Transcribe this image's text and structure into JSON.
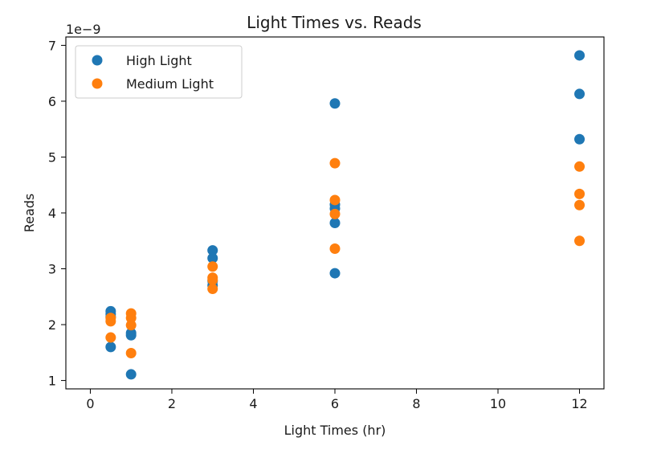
{
  "chart_data": {
    "type": "scatter",
    "title": "Light Times vs. Reads",
    "xlabel": "Light Times (hr)",
    "ylabel": "Reads",
    "offset_text": "1e−9",
    "xlim": [
      -0.6,
      12.6
    ],
    "ylim": [
      0.85,
      7.15
    ],
    "xticks": [
      0,
      2,
      4,
      6,
      8,
      10,
      12
    ],
    "yticks": [
      1,
      2,
      3,
      4,
      5,
      6,
      7
    ],
    "grid": false,
    "legend_position": "top-left",
    "series": [
      {
        "name": "High Light",
        "color": "#1f77b4",
        "points": [
          {
            "x": 0.5,
            "y": 2.24
          },
          {
            "x": 0.5,
            "y": 2.19
          },
          {
            "x": 0.5,
            "y": 2.14
          },
          {
            "x": 0.5,
            "y": 1.6
          },
          {
            "x": 1,
            "y": 1.85
          },
          {
            "x": 1,
            "y": 1.81
          },
          {
            "x": 1,
            "y": 1.11
          },
          {
            "x": 3,
            "y": 3.33
          },
          {
            "x": 3,
            "y": 3.19
          },
          {
            "x": 3,
            "y": 2.78
          },
          {
            "x": 3,
            "y": 2.7
          },
          {
            "x": 6,
            "y": 5.96
          },
          {
            "x": 6,
            "y": 4.15
          },
          {
            "x": 6,
            "y": 4.08
          },
          {
            "x": 6,
            "y": 3.82
          },
          {
            "x": 6,
            "y": 2.92
          },
          {
            "x": 12,
            "y": 6.82
          },
          {
            "x": 12,
            "y": 6.13
          },
          {
            "x": 12,
            "y": 5.32
          }
        ]
      },
      {
        "name": "Medium Light",
        "color": "#ff7f0e",
        "points": [
          {
            "x": 0.5,
            "y": 2.12
          },
          {
            "x": 0.5,
            "y": 2.06
          },
          {
            "x": 0.5,
            "y": 1.77
          },
          {
            "x": 1,
            "y": 2.2
          },
          {
            "x": 1,
            "y": 2.12
          },
          {
            "x": 1,
            "y": 1.99
          },
          {
            "x": 1,
            "y": 1.49
          },
          {
            "x": 3,
            "y": 3.04
          },
          {
            "x": 3,
            "y": 2.84
          },
          {
            "x": 3,
            "y": 2.8
          },
          {
            "x": 3,
            "y": 2.64
          },
          {
            "x": 6,
            "y": 4.89
          },
          {
            "x": 6,
            "y": 4.23
          },
          {
            "x": 6,
            "y": 3.98
          },
          {
            "x": 6,
            "y": 3.36
          },
          {
            "x": 12,
            "y": 4.83
          },
          {
            "x": 12,
            "y": 4.34
          },
          {
            "x": 12,
            "y": 4.14
          },
          {
            "x": 12,
            "y": 3.5
          }
        ]
      }
    ]
  }
}
